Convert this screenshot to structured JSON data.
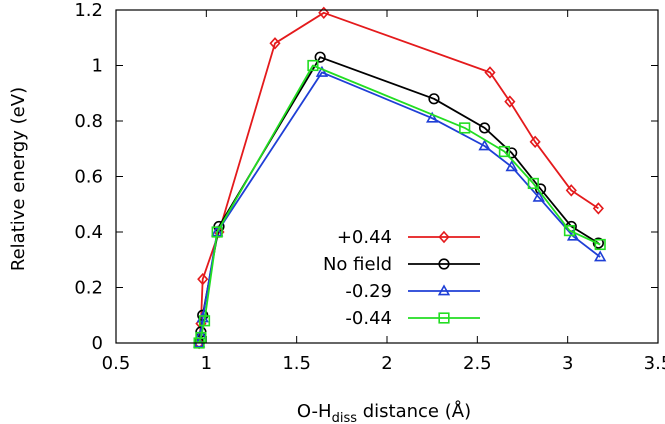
{
  "chart_data": {
    "type": "line",
    "xlabel": {
      "main": "O-H",
      "sub": "diss",
      "rest": " distance (Å)"
    },
    "ylabel": "Relative energy  (eV)",
    "xlim": [
      0.5,
      3.5
    ],
    "ylim": [
      0,
      1.2
    ],
    "xticks": [
      0.5,
      1,
      1.5,
      2,
      2.5,
      3,
      3.5
    ],
    "xtick_labels": [
      "0.5",
      "1",
      "1.5",
      "2",
      "2.5",
      "3",
      "3.5"
    ],
    "yticks": [
      0,
      0.2,
      0.4,
      0.6,
      0.8,
      1,
      1.2
    ],
    "ytick_labels": [
      "0",
      "0.2",
      "0.4",
      "0.6",
      "0.8",
      "1",
      "1.2"
    ],
    "grid": false,
    "legend_position": "lower-center",
    "series": [
      {
        "name": "+0.44",
        "color": "#e41a1c",
        "marker": "diamond",
        "x": [
          0.96,
          0.97,
          0.98,
          1.07,
          1.38,
          1.65,
          2.57,
          2.68,
          2.82,
          3.02,
          3.17
        ],
        "y": [
          0.0,
          0.07,
          0.23,
          0.4,
          1.08,
          1.19,
          0.975,
          0.87,
          0.725,
          0.55,
          0.485
        ]
      },
      {
        "name": "No field",
        "color": "#000000",
        "marker": "circle",
        "x": [
          0.96,
          0.97,
          0.98,
          1.07,
          1.63,
          2.26,
          2.54,
          2.69,
          2.85,
          3.02,
          3.17
        ],
        "y": [
          0.0,
          0.04,
          0.1,
          0.42,
          1.03,
          0.88,
          0.775,
          0.685,
          0.555,
          0.42,
          0.36
        ]
      },
      {
        "name": "-0.29",
        "color": "#1f3fd6",
        "marker": "triangle",
        "x": [
          0.96,
          0.97,
          0.98,
          1.06,
          1.64,
          2.25,
          2.54,
          2.69,
          2.84,
          3.03,
          3.18
        ],
        "y": [
          0.0,
          0.03,
          0.09,
          0.4,
          0.975,
          0.81,
          0.71,
          0.635,
          0.525,
          0.385,
          0.31
        ]
      },
      {
        "name": "-0.44",
        "color": "#22dd22",
        "marker": "square",
        "x": [
          0.96,
          0.97,
          0.99,
          1.06,
          1.59,
          2.43,
          2.65,
          2.81,
          3.01,
          3.18
        ],
        "y": [
          0.0,
          0.02,
          0.08,
          0.4,
          1.0,
          0.775,
          0.69,
          0.575,
          0.405,
          0.355
        ]
      }
    ]
  }
}
